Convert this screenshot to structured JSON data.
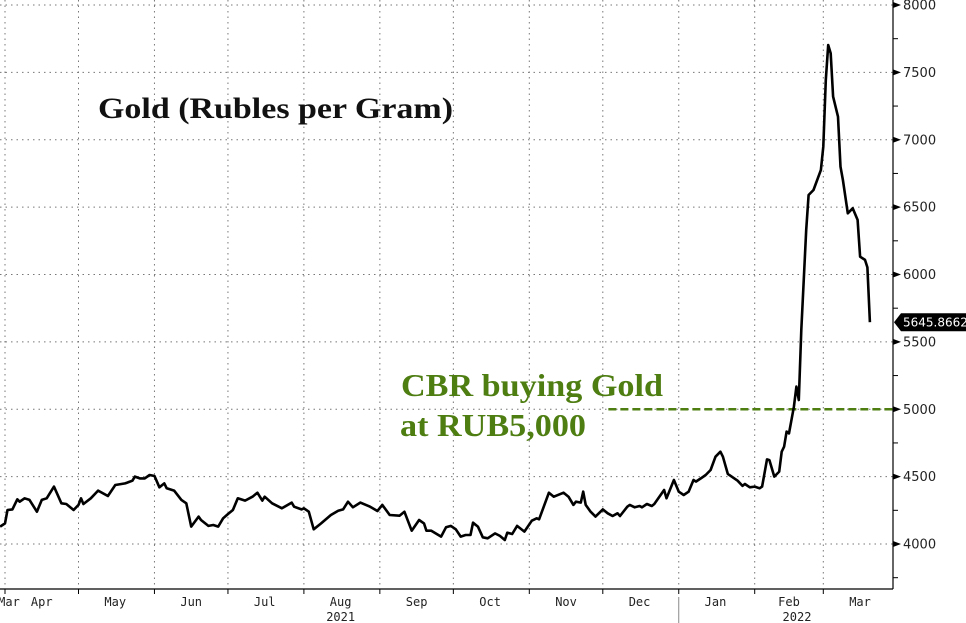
{
  "chart_data": {
    "type": "line",
    "title": "Gold (Rubles per Gram)",
    "xlabel": "",
    "ylabel": "",
    "ylim": [
      3650,
      8000
    ],
    "y_ticks": [
      4000,
      4500,
      5000,
      5500,
      6000,
      6500,
      7000,
      7500,
      8000
    ],
    "y_tick_labels": [
      "4000",
      "4500",
      "5000",
      "5500",
      "6000",
      "6500",
      "7000",
      "7500",
      "8000"
    ],
    "x_range": [
      "2021-03-30",
      "2022-04-01"
    ],
    "x_tick_labels": [
      {
        "label": "Mar",
        "date": "2021-03-15"
      },
      {
        "label": "Apr",
        "date": "2021-04-16"
      },
      {
        "label": "May",
        "date": "2021-05-16"
      },
      {
        "label": "Jun",
        "date": "2021-06-16"
      },
      {
        "label": "Jul",
        "date": "2021-07-16"
      },
      {
        "label": "Aug",
        "date": "2021-08-16"
      },
      {
        "label": "Sep",
        "date": "2021-09-16"
      },
      {
        "label": "Oct",
        "date": "2021-10-16"
      },
      {
        "label": "Nov",
        "date": "2021-11-16"
      },
      {
        "label": "Dec",
        "date": "2021-12-16"
      },
      {
        "label": "Jan",
        "date": "2022-01-16"
      },
      {
        "label": "Feb",
        "date": "2022-02-15"
      },
      {
        "label": "Mar",
        "date": "2022-03-16"
      }
    ],
    "year_labels": [
      {
        "label": "2021",
        "date": "2021-08-16"
      },
      {
        "label": "2022",
        "date": "2022-02-15"
      }
    ],
    "grid": true,
    "line_color": "#000000",
    "series": [
      {
        "points": [
          [
            "2021-03-30",
            4129
          ],
          [
            "2021-04-01",
            4153
          ],
          [
            "2021-04-02",
            4252
          ],
          [
            "2021-04-04",
            4257
          ],
          [
            "2021-04-06",
            4332
          ],
          [
            "2021-04-07",
            4314
          ],
          [
            "2021-04-09",
            4339
          ],
          [
            "2021-04-11",
            4327
          ],
          [
            "2021-04-14",
            4240
          ],
          [
            "2021-04-16",
            4327
          ],
          [
            "2021-04-18",
            4339
          ],
          [
            "2021-04-21",
            4426
          ],
          [
            "2021-04-24",
            4302
          ],
          [
            "2021-04-26",
            4297
          ],
          [
            "2021-04-29",
            4252
          ],
          [
            "2021-05-01",
            4290
          ],
          [
            "2021-05-02",
            4339
          ],
          [
            "2021-05-03",
            4297
          ],
          [
            "2021-05-06",
            4339
          ],
          [
            "2021-05-09",
            4396
          ],
          [
            "2021-05-13",
            4356
          ],
          [
            "2021-05-16",
            4438
          ],
          [
            "2021-05-20",
            4450
          ],
          [
            "2021-05-23",
            4470
          ],
          [
            "2021-05-24",
            4500
          ],
          [
            "2021-05-26",
            4487
          ],
          [
            "2021-05-28",
            4487
          ],
          [
            "2021-05-30",
            4512
          ],
          [
            "2021-06-01",
            4505
          ],
          [
            "2021-06-03",
            4421
          ],
          [
            "2021-06-05",
            4450
          ],
          [
            "2021-06-06",
            4413
          ],
          [
            "2021-06-09",
            4396
          ],
          [
            "2021-06-12",
            4327
          ],
          [
            "2021-06-14",
            4302
          ],
          [
            "2021-06-16",
            4129
          ],
          [
            "2021-06-19",
            4203
          ],
          [
            "2021-06-20",
            4178
          ],
          [
            "2021-06-23",
            4134
          ],
          [
            "2021-06-25",
            4141
          ],
          [
            "2021-06-27",
            4129
          ],
          [
            "2021-06-29",
            4191
          ],
          [
            "2021-07-01",
            4223
          ],
          [
            "2021-07-03",
            4252
          ],
          [
            "2021-07-05",
            4339
          ],
          [
            "2021-07-08",
            4322
          ],
          [
            "2021-07-11",
            4351
          ],
          [
            "2021-07-13",
            4381
          ],
          [
            "2021-07-15",
            4322
          ],
          [
            "2021-07-16",
            4351
          ],
          [
            "2021-07-19",
            4302
          ],
          [
            "2021-07-23",
            4265
          ],
          [
            "2021-07-27",
            4307
          ],
          [
            "2021-07-28",
            4277
          ],
          [
            "2021-07-31",
            4257
          ],
          [
            "2021-08-01",
            4265
          ],
          [
            "2021-08-03",
            4240
          ],
          [
            "2021-08-05",
            4109
          ],
          [
            "2021-08-08",
            4153
          ],
          [
            "2021-08-12",
            4215
          ],
          [
            "2021-08-15",
            4247
          ],
          [
            "2021-08-17",
            4257
          ],
          [
            "2021-08-19",
            4314
          ],
          [
            "2021-08-21",
            4272
          ],
          [
            "2021-08-24",
            4307
          ],
          [
            "2021-08-28",
            4277
          ],
          [
            "2021-08-31",
            4245
          ],
          [
            "2021-09-02",
            4290
          ],
          [
            "2021-09-05",
            4215
          ],
          [
            "2021-09-09",
            4210
          ],
          [
            "2021-09-11",
            4240
          ],
          [
            "2021-09-14",
            4099
          ],
          [
            "2021-09-17",
            4178
          ],
          [
            "2021-09-19",
            4153
          ],
          [
            "2021-09-20",
            4099
          ],
          [
            "2021-09-22",
            4099
          ],
          [
            "2021-09-26",
            4055
          ],
          [
            "2021-09-28",
            4124
          ],
          [
            "2021-09-30",
            4134
          ],
          [
            "2021-10-02",
            4109
          ],
          [
            "2021-10-04",
            4055
          ],
          [
            "2021-10-06",
            4067
          ],
          [
            "2021-10-08",
            4067
          ],
          [
            "2021-10-09",
            4158
          ],
          [
            "2021-10-11",
            4129
          ],
          [
            "2021-10-13",
            4050
          ],
          [
            "2021-10-15",
            4042
          ],
          [
            "2021-10-18",
            4079
          ],
          [
            "2021-10-20",
            4060
          ],
          [
            "2021-10-22",
            4030
          ],
          [
            "2021-10-23",
            4084
          ],
          [
            "2021-10-25",
            4074
          ],
          [
            "2021-10-27",
            4134
          ],
          [
            "2021-10-30",
            4092
          ],
          [
            "2021-11-02",
            4173
          ],
          [
            "2021-11-04",
            4191
          ],
          [
            "2021-11-05",
            4183
          ],
          [
            "2021-11-09",
            4381
          ],
          [
            "2021-11-11",
            4351
          ],
          [
            "2021-11-15",
            4381
          ],
          [
            "2021-11-17",
            4351
          ],
          [
            "2021-11-19",
            4290
          ],
          [
            "2021-11-20",
            4314
          ],
          [
            "2021-11-22",
            4307
          ],
          [
            "2021-11-23",
            4389
          ],
          [
            "2021-11-24",
            4290
          ],
          [
            "2021-11-26",
            4240
          ],
          [
            "2021-11-28",
            4203
          ],
          [
            "2021-12-01",
            4257
          ],
          [
            "2021-12-03",
            4228
          ],
          [
            "2021-12-05",
            4208
          ],
          [
            "2021-12-07",
            4228
          ],
          [
            "2021-12-08",
            4208
          ],
          [
            "2021-12-11",
            4277
          ],
          [
            "2021-12-12",
            4290
          ],
          [
            "2021-12-14",
            4272
          ],
          [
            "2021-12-16",
            4282
          ],
          [
            "2021-12-17",
            4272
          ],
          [
            "2021-12-19",
            4297
          ],
          [
            "2021-12-21",
            4282
          ],
          [
            "2021-12-22",
            4297
          ],
          [
            "2021-12-26",
            4401
          ],
          [
            "2021-12-27",
            4339
          ],
          [
            "2021-12-30",
            4475
          ],
          [
            "2022-01-01",
            4388
          ],
          [
            "2022-01-03",
            4364
          ],
          [
            "2022-01-05",
            4388
          ],
          [
            "2022-01-07",
            4475
          ],
          [
            "2022-01-08",
            4463
          ],
          [
            "2022-01-10",
            4487
          ],
          [
            "2022-01-12",
            4512
          ],
          [
            "2022-01-14",
            4549
          ],
          [
            "2022-01-16",
            4648
          ],
          [
            "2022-01-18",
            4685
          ],
          [
            "2022-01-19",
            4648
          ],
          [
            "2022-01-21",
            4520
          ],
          [
            "2022-01-23",
            4495
          ],
          [
            "2022-01-25",
            4470
          ],
          [
            "2022-01-27",
            4431
          ],
          [
            "2022-01-28",
            4445
          ],
          [
            "2022-01-30",
            4421
          ],
          [
            "2022-02-01",
            4426
          ],
          [
            "2022-02-03",
            4413
          ],
          [
            "2022-02-04",
            4426
          ],
          [
            "2022-02-06",
            4628
          ],
          [
            "2022-02-07",
            4623
          ],
          [
            "2022-02-09",
            4500
          ],
          [
            "2022-02-11",
            4537
          ],
          [
            "2022-02-12",
            4685
          ],
          [
            "2022-02-13",
            4722
          ],
          [
            "2022-02-14",
            4834
          ],
          [
            "2022-02-15",
            4821
          ],
          [
            "2022-02-17",
            5019
          ],
          [
            "2022-02-18",
            5168
          ],
          [
            "2022-02-19",
            5069
          ],
          [
            "2022-02-20",
            5588
          ],
          [
            "2022-02-22",
            6330
          ],
          [
            "2022-02-23",
            6590
          ],
          [
            "2022-02-25",
            6627
          ],
          [
            "2022-02-28",
            6776
          ],
          [
            "2022-03-01",
            6949
          ],
          [
            "2022-03-02",
            7443
          ],
          [
            "2022-03-03",
            7703
          ],
          [
            "2022-03-04",
            7641
          ],
          [
            "2022-03-05",
            7320
          ],
          [
            "2022-03-07",
            7171
          ],
          [
            "2022-03-08",
            6800
          ],
          [
            "2022-03-09",
            6701
          ],
          [
            "2022-03-11",
            6454
          ],
          [
            "2022-03-13",
            6491
          ],
          [
            "2022-03-15",
            6405
          ],
          [
            "2022-03-16",
            6132
          ],
          [
            "2022-03-18",
            6108
          ],
          [
            "2022-03-19",
            6053
          ],
          [
            "2022-03-20",
            5645.8662
          ]
        ]
      }
    ],
    "last_value_label": "5645.8662",
    "reference_line": {
      "value": 5000,
      "color": "#4e7d12",
      "style": "dashed",
      "from_date": "2021-11-30"
    },
    "annotations": [
      "CBR buying Gold",
      "at RUB5,000"
    ],
    "annotation_color": "#4e7d12"
  }
}
